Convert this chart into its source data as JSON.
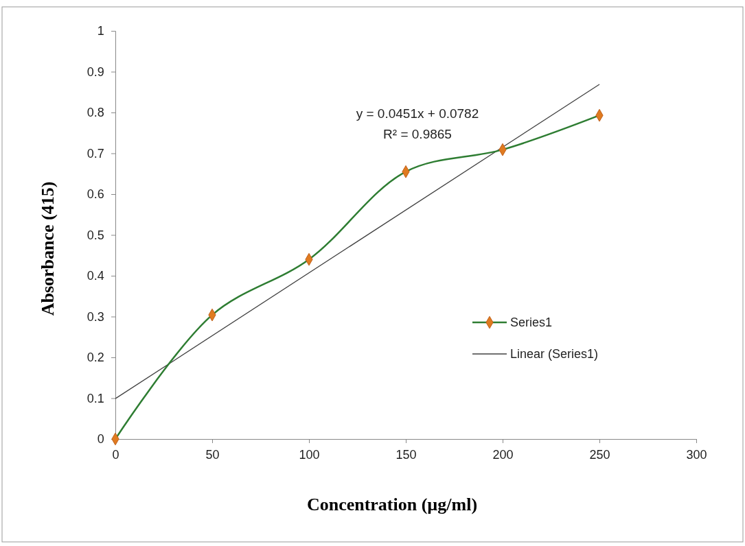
{
  "chart_data": {
    "type": "line",
    "xlabel": "Concentration  (µg/ml)",
    "ylabel": "Absorbance (415)",
    "xlim": [
      0,
      300
    ],
    "xticks": [
      0,
      50,
      100,
      150,
      200,
      250,
      300
    ],
    "ylim": [
      0,
      1
    ],
    "yticks": [
      0,
      0.1,
      0.2,
      0.3,
      0.4,
      0.5,
      0.6,
      0.7,
      0.8,
      0.9,
      1
    ],
    "series": [
      {
        "name": "Series1",
        "color": "#2e7d32",
        "x": [
          0,
          50,
          100,
          150,
          200,
          250
        ],
        "values": [
          0,
          0.304,
          0.44,
          0.655,
          0.709,
          0.793
        ],
        "marker": "diamond",
        "line_style": "solid"
      },
      {
        "name": "Linear (Series1)",
        "color": "#404040",
        "x": [
          0,
          250
        ],
        "values": [
          0.099,
          0.869
        ],
        "marker": "none",
        "line_style": "solid"
      }
    ],
    "annotations": [
      "y = 0.0451x + 0.0782",
      "R² = 0.9865"
    ],
    "legend": "right",
    "grid": false
  }
}
